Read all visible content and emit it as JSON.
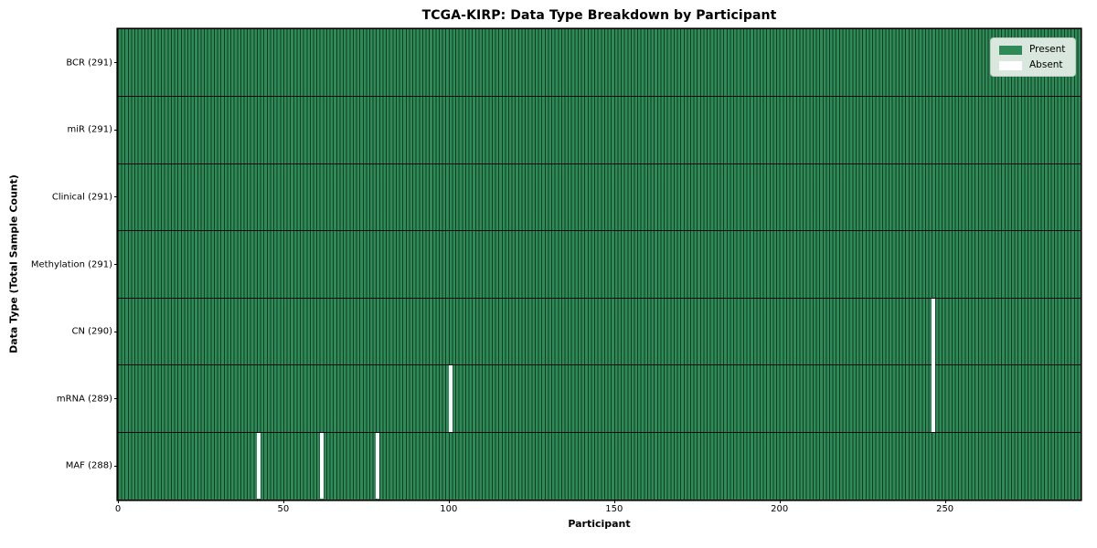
{
  "title": "TCGA-KIRP: Data Type Breakdown by Participant",
  "colors": {
    "present": "#2e8b57",
    "absent": "#ffffff",
    "cell_edge": "rgba(8,30,18,0.72)",
    "row_divider": "#0b0b0b",
    "plot_border": "#000000",
    "legend_bg": "#d9e7de",
    "legend_border": "#c0cbc3"
  },
  "chart_data": {
    "type": "heatmap",
    "title": "TCGA-KIRP: Data Type Breakdown by Participant",
    "xlabel": "Participant",
    "ylabel": "Data Type (Total Sample Count)",
    "n_participants": 291,
    "x_ticks": [
      0,
      50,
      100,
      150,
      200,
      250
    ],
    "grid": false,
    "legend_position": "upper right",
    "rows": [
      {
        "name": "BCR",
        "label": "BCR (291)",
        "total": 291,
        "absent_participants": []
      },
      {
        "name": "miR",
        "label": "miR (291)",
        "total": 291,
        "absent_participants": []
      },
      {
        "name": "Clinical",
        "label": "Clinical (291)",
        "total": 291,
        "absent_participants": []
      },
      {
        "name": "Methylation",
        "label": "Methylation (291)",
        "total": 291,
        "absent_participants": []
      },
      {
        "name": "CN",
        "label": "CN (290)",
        "total": 290,
        "absent_participants": [
          246
        ]
      },
      {
        "name": "mRNA",
        "label": "mRNA (289)",
        "total": 289,
        "absent_participants": [
          100,
          246
        ]
      },
      {
        "name": "MAF",
        "label": "MAF (288)",
        "total": 288,
        "absent_participants": [
          42,
          61,
          78
        ]
      }
    ],
    "legend": [
      {
        "label": "Present",
        "color": "#2e8b57"
      },
      {
        "label": "Absent",
        "color": "#ffffff"
      }
    ]
  }
}
